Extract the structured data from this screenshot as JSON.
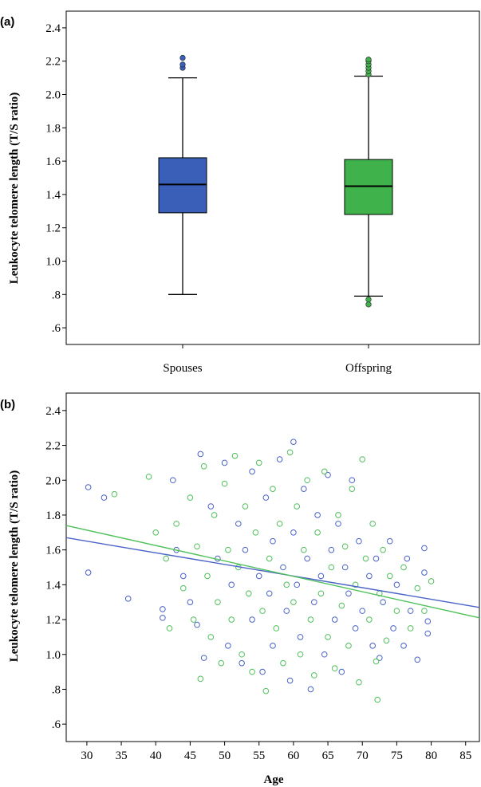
{
  "chart_data": [
    {
      "panel": "(a)",
      "type": "box",
      "ylabel": "Leukocyte telomere length (T/S ratio)",
      "ylim": [
        0.5,
        2.5
      ],
      "yticks": [
        0.6,
        0.8,
        1.0,
        1.2,
        1.4,
        1.6,
        1.8,
        2.0,
        2.2,
        2.4
      ],
      "ytick_labels": [
        ".6",
        ".8",
        "1.0",
        "1.2",
        "1.4",
        "1.6",
        "1.8",
        "2.0",
        "2.2",
        "2.4"
      ],
      "categories": [
        "Spouses",
        "Offspring"
      ],
      "boxes": [
        {
          "category": "Spouses",
          "color": "#3a5fb8",
          "whisker_low": 0.8,
          "q1": 1.29,
          "median": 1.46,
          "q3": 1.62,
          "whisker_high": 2.1,
          "outliers": [
            2.16,
            2.18,
            2.22
          ]
        },
        {
          "category": "Offspring",
          "color": "#3fb24b",
          "whisker_low": 0.79,
          "q1": 1.28,
          "median": 1.45,
          "q3": 1.61,
          "whisker_high": 2.11,
          "outliers": [
            0.74,
            0.77,
            2.12,
            2.14,
            2.16,
            2.18,
            2.2,
            2.21
          ]
        }
      ]
    },
    {
      "panel": "(b)",
      "type": "scatter",
      "xlabel": "Age",
      "ylabel": "Leukocyte telomere length (T/S ratio)",
      "xlim": [
        27,
        87
      ],
      "ylim": [
        0.5,
        2.5
      ],
      "xticks": [
        30,
        35,
        40,
        45,
        50,
        55,
        60,
        65,
        70,
        75,
        80,
        85
      ],
      "yticks": [
        0.6,
        0.8,
        1.0,
        1.2,
        1.4,
        1.6,
        1.8,
        2.0,
        2.2,
        2.4
      ],
      "ytick_labels": [
        ".6",
        ".8",
        "1.0",
        "1.2",
        "1.4",
        "1.6",
        "1.8",
        "2.0",
        "2.2",
        "2.4"
      ],
      "series": [
        {
          "color": "#4a63c7",
          "fit_line": {
            "x": [
              27,
              87
            ],
            "y": [
              1.67,
              1.27
            ]
          },
          "points": [
            [
              30.2,
              1.96
            ],
            [
              30.2,
              1.47
            ],
            [
              32.5,
              1.9
            ],
            [
              36,
              1.32
            ],
            [
              41,
              1.26
            ],
            [
              41,
              1.21
            ],
            [
              42.5,
              2.0
            ],
            [
              43,
              1.6
            ],
            [
              44,
              1.45
            ],
            [
              45,
              1.3
            ],
            [
              46,
              1.17
            ],
            [
              46.5,
              2.15
            ],
            [
              47,
              0.98
            ],
            [
              48,
              1.85
            ],
            [
              49,
              1.55
            ],
            [
              50,
              2.1
            ],
            [
              50.5,
              1.05
            ],
            [
              51,
              1.4
            ],
            [
              52,
              1.75
            ],
            [
              52.5,
              0.95
            ],
            [
              53,
              1.6
            ],
            [
              54,
              2.05
            ],
            [
              54,
              1.2
            ],
            [
              55,
              1.45
            ],
            [
              55.5,
              0.9
            ],
            [
              56,
              1.9
            ],
            [
              56.5,
              1.35
            ],
            [
              57,
              1.65
            ],
            [
              57,
              1.05
            ],
            [
              58,
              2.12
            ],
            [
              58.5,
              1.5
            ],
            [
              59,
              1.25
            ],
            [
              59.5,
              0.85
            ],
            [
              60,
              2.22
            ],
            [
              60,
              1.7
            ],
            [
              60.5,
              1.4
            ],
            [
              61,
              1.1
            ],
            [
              61.5,
              1.95
            ],
            [
              62,
              1.55
            ],
            [
              62.5,
              0.8
            ],
            [
              63,
              1.3
            ],
            [
              63.5,
              1.8
            ],
            [
              64,
              1.45
            ],
            [
              64.5,
              1.0
            ],
            [
              65,
              2.03
            ],
            [
              65.5,
              1.6
            ],
            [
              66,
              1.2
            ],
            [
              66.5,
              1.75
            ],
            [
              67,
              0.9
            ],
            [
              67.5,
              1.5
            ],
            [
              68,
              1.35
            ],
            [
              68.5,
              2.0
            ],
            [
              69,
              1.15
            ],
            [
              69.5,
              1.65
            ],
            [
              70,
              1.25
            ],
            [
              71,
              1.45
            ],
            [
              71.5,
              1.05
            ],
            [
              72,
              1.55
            ],
            [
              72.5,
              0.98
            ],
            [
              73,
              1.3
            ],
            [
              74,
              1.65
            ],
            [
              74.5,
              1.15
            ],
            [
              75,
              1.4
            ],
            [
              76,
              1.05
            ],
            [
              76.5,
              1.55
            ],
            [
              77,
              1.25
            ],
            [
              78,
              0.97
            ],
            [
              79,
              1.61
            ],
            [
              79,
              1.47
            ],
            [
              79.5,
              1.19
            ],
            [
              79.5,
              1.12
            ]
          ]
        },
        {
          "color": "#4fc05a",
          "fit_line": {
            "x": [
              27,
              87
            ],
            "y": [
              1.74,
              1.21
            ]
          },
          "points": [
            [
              34,
              1.92
            ],
            [
              39,
              2.02
            ],
            [
              40,
              1.7
            ],
            [
              41.5,
              1.55
            ],
            [
              42,
              1.15
            ],
            [
              43,
              1.75
            ],
            [
              44,
              1.38
            ],
            [
              45,
              1.9
            ],
            [
              45.5,
              1.2
            ],
            [
              46,
              1.62
            ],
            [
              46.5,
              0.86
            ],
            [
              47,
              2.08
            ],
            [
              47.5,
              1.45
            ],
            [
              48,
              1.1
            ],
            [
              48.5,
              1.8
            ],
            [
              49,
              1.3
            ],
            [
              49.5,
              0.95
            ],
            [
              50,
              1.98
            ],
            [
              50.5,
              1.6
            ],
            [
              51,
              1.2
            ],
            [
              51.5,
              2.14
            ],
            [
              52,
              1.5
            ],
            [
              52.5,
              1.0
            ],
            [
              53,
              1.85
            ],
            [
              53.5,
              1.35
            ],
            [
              54,
              0.9
            ],
            [
              54.5,
              1.7
            ],
            [
              55,
              2.1
            ],
            [
              55.5,
              1.25
            ],
            [
              56,
              0.79
            ],
            [
              56.5,
              1.55
            ],
            [
              57,
              1.95
            ],
            [
              57.5,
              1.15
            ],
            [
              58,
              1.75
            ],
            [
              58.5,
              0.95
            ],
            [
              59,
              1.4
            ],
            [
              59.5,
              2.16
            ],
            [
              60,
              1.3
            ],
            [
              60.5,
              1.85
            ],
            [
              61,
              1.0
            ],
            [
              61.5,
              1.6
            ],
            [
              62,
              2.0
            ],
            [
              62.5,
              1.2
            ],
            [
              63,
              0.88
            ],
            [
              63.5,
              1.7
            ],
            [
              64,
              1.35
            ],
            [
              64.5,
              2.05
            ],
            [
              65,
              1.1
            ],
            [
              65.5,
              1.5
            ],
            [
              66,
              0.92
            ],
            [
              66.5,
              1.8
            ],
            [
              67,
              1.28
            ],
            [
              67.5,
              1.62
            ],
            [
              68,
              1.05
            ],
            [
              68.5,
              1.95
            ],
            [
              69,
              1.4
            ],
            [
              69.5,
              0.84
            ],
            [
              70,
              2.12
            ],
            [
              70.5,
              1.55
            ],
            [
              71,
              1.2
            ],
            [
              71.5,
              1.75
            ],
            [
              72,
              0.96
            ],
            [
              72.5,
              1.35
            ],
            [
              73,
              1.6
            ],
            [
              73.5,
              1.08
            ],
            [
              74,
              1.45
            ],
            [
              75,
              1.25
            ],
            [
              76,
              1.5
            ],
            [
              77,
              1.15
            ],
            [
              78,
              1.38
            ],
            [
              79,
              1.25
            ],
            [
              80,
              1.42
            ],
            [
              72.2,
              0.74
            ]
          ]
        }
      ]
    }
  ]
}
